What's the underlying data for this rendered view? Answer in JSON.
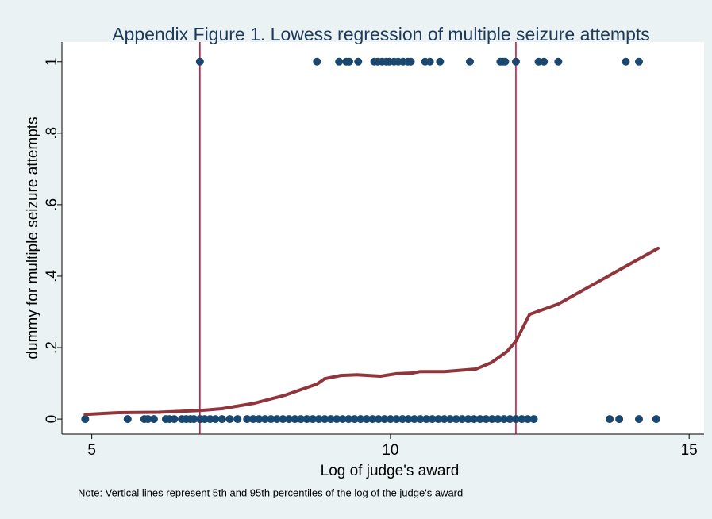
{
  "chart_data": {
    "type": "scatter",
    "title": "Appendix Figure 1. Lowess regression of multiple seizure attempts",
    "x_label": "Log of judge's award",
    "y_label": "dummy for multiple seizure attempts",
    "note": "Note: Vertical lines represent 5th and 95th percentiles of the log of the judge's award",
    "xlim": [
      4.5,
      15.25
    ],
    "ylim": [
      -0.042,
      1.055
    ],
    "xticks": [
      5,
      10,
      15
    ],
    "yticks": [
      0,
      {
        "value": 0.2,
        "label": ".2"
      },
      {
        "value": 0.4,
        "label": ".4"
      },
      {
        "value": 0.6,
        "label": ".6"
      },
      {
        "value": 0.8,
        "label": ".8"
      },
      1
    ],
    "scatter": {
      "color": "#1a476f",
      "x": [
        6.81,
        8.77,
        9.14,
        9.26,
        9.31,
        9.46,
        9.73,
        9.79,
        9.86,
        9.93,
        9.98,
        10.06,
        10.13,
        10.21,
        10.29,
        10.34,
        10.58,
        10.66,
        10.83,
        11.33,
        11.84,
        11.88,
        11.92,
        12.1,
        12.48,
        12.57,
        12.81,
        13.94,
        14.16,
        4.89,
        5.6,
        5.88,
        5.94,
        6.04,
        6.24,
        6.3,
        6.38,
        6.51,
        6.58,
        6.65,
        6.71,
        6.81,
        6.89,
        6.98,
        7.07,
        7.18,
        7.31,
        7.44,
        7.6,
        7.7,
        7.8,
        7.9,
        8.0,
        8.1,
        8.2,
        8.3,
        8.4,
        8.5,
        8.6,
        8.7,
        8.8,
        8.9,
        9.0,
        9.1,
        9.2,
        9.3,
        9.4,
        9.5,
        9.6,
        9.7,
        9.8,
        9.9,
        10.0,
        10.1,
        10.2,
        10.3,
        10.4,
        10.5,
        10.6,
        10.7,
        10.8,
        10.9,
        11.0,
        11.1,
        11.2,
        11.3,
        11.4,
        11.5,
        11.6,
        11.7,
        11.8,
        11.9,
        12.0,
        12.1,
        12.2,
        12.3,
        12.4,
        13.67,
        13.83,
        14.16,
        14.45
      ],
      "values": [
        1,
        1,
        1,
        1,
        1,
        1,
        1,
        1,
        1,
        1,
        1,
        1,
        1,
        1,
        1,
        1,
        1,
        1,
        1,
        1,
        1,
        1,
        1,
        1,
        1,
        1,
        1,
        1,
        1,
        0,
        0,
        0,
        0,
        0,
        0,
        0,
        0,
        0,
        0,
        0,
        0,
        0,
        0,
        0,
        0,
        0,
        0,
        0,
        0,
        0,
        0,
        0,
        0,
        0,
        0,
        0,
        0,
        0,
        0,
        0,
        0,
        0,
        0,
        0,
        0,
        0,
        0,
        0,
        0,
        0,
        0,
        0,
        0,
        0,
        0,
        0,
        0,
        0,
        0,
        0,
        0,
        0,
        0,
        0,
        0,
        0,
        0,
        0,
        0,
        0,
        0,
        0,
        0,
        0,
        0,
        0,
        0,
        0,
        0,
        0,
        0
      ]
    },
    "lowess": {
      "color": "#90353b",
      "x": [
        4.89,
        5.45,
        6.12,
        6.81,
        7.18,
        7.71,
        8.24,
        8.77,
        8.9,
        9.17,
        9.44,
        9.83,
        10.1,
        10.37,
        10.5,
        10.9,
        11.43,
        11.69,
        11.95,
        12.1,
        12.33,
        12.81,
        14.48
      ],
      "values": [
        0.013,
        0.018,
        0.019,
        0.024,
        0.029,
        0.044,
        0.067,
        0.098,
        0.113,
        0.122,
        0.124,
        0.12,
        0.127,
        0.129,
        0.133,
        0.133,
        0.14,
        0.158,
        0.189,
        0.218,
        0.293,
        0.322,
        0.478
      ]
    },
    "vlines": {
      "color": "#c10534",
      "x": [
        6.81,
        12.1
      ]
    }
  }
}
